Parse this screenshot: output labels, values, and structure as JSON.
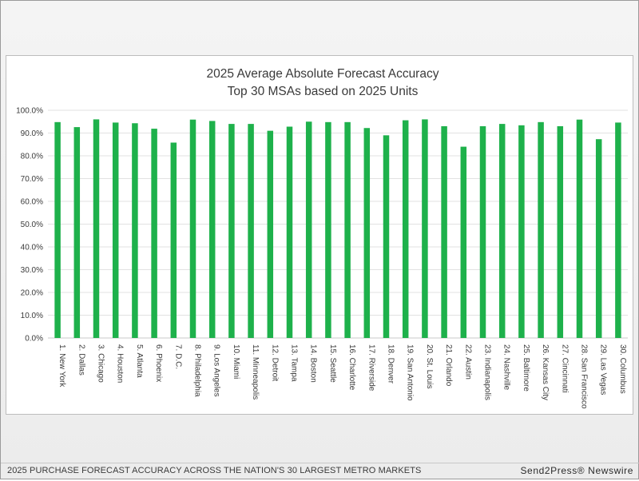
{
  "footer": {
    "caption": "2025 PURCHASE FORECAST ACCURACY ACROSS THE NATION'S 30 LARGEST METRO MARKETS",
    "brand": "Send2Press® Newswire"
  },
  "chart_data": {
    "type": "bar",
    "title": "2025 Average Absolute Forecast Accuracy",
    "subtitle": "Top 30 MSAs based on 2025 Units",
    "xlabel": "",
    "ylabel": "",
    "ylim": [
      0,
      100
    ],
    "yticks": [
      "0.0%",
      "10.0%",
      "20.0%",
      "30.0%",
      "40.0%",
      "50.0%",
      "60.0%",
      "70.0%",
      "80.0%",
      "90.0%",
      "100.0%"
    ],
    "grid": true,
    "legend": "none",
    "bar_color": "#1eb14b",
    "categories": [
      "1. New York",
      "2. Dallas",
      "3. Chicago",
      "4. Houston",
      "5. Atlanta",
      "6. Phoenix",
      "7. D.C.",
      "8. Philadelphia",
      "9. Los Angeles",
      "10. Miami",
      "11. Minneapolis",
      "12. Detroit",
      "13. Tampa",
      "14. Boston",
      "15. Seattle",
      "16. Charlotte",
      "17. Riverside",
      "18. Denver",
      "19. San Antonio",
      "20. St. Louis",
      "21. Orlando",
      "22. Austin",
      "23. Indianapolis",
      "24. Nashville",
      "25. Baltimore",
      "26. Kansas City",
      "27. Cincinnati",
      "28. San Francisco",
      "29. Las Vegas",
      "30. Columbus"
    ],
    "values": [
      94.8,
      92.6,
      96.0,
      94.6,
      94.3,
      91.9,
      85.8,
      95.9,
      95.3,
      94.0,
      94.0,
      91.0,
      92.8,
      95.0,
      94.8,
      94.8,
      92.2,
      89.0,
      95.6,
      96.0,
      93.0,
      84.0,
      93.0,
      94.0,
      93.4,
      94.8,
      93.0,
      95.9,
      87.3,
      94.6
    ]
  }
}
